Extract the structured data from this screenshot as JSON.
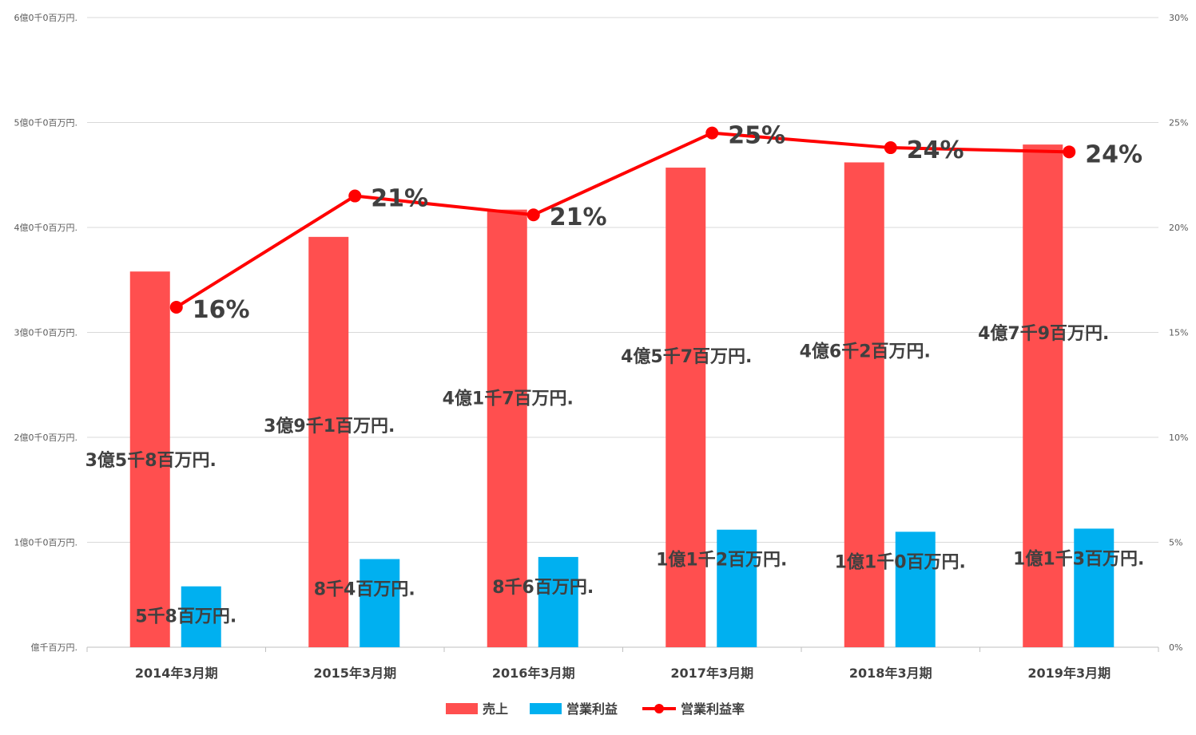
{
  "chart_data": {
    "type": "bar",
    "categories": [
      "2014年3月期",
      "2015年3月期",
      "2016年3月期",
      "2017年3月期",
      "2018年3月期",
      "2019年3月期"
    ],
    "series": [
      {
        "name": "売上",
        "kind": "bar",
        "axis": "left",
        "color": "#FF4F4F",
        "values": [
          358,
          391,
          417,
          457,
          462,
          479
        ],
        "labels": [
          "3億5千8百万円.",
          "3億9千1百万円.",
          "4億1千7百万円.",
          "4億5千7百万円.",
          "4億6千2百万円.",
          "4億7千9百万円."
        ]
      },
      {
        "name": "営業利益",
        "kind": "bar",
        "axis": "left",
        "color": "#00B0F0",
        "values": [
          58,
          84,
          86,
          112,
          110,
          113
        ],
        "labels": [
          "5千8百万円.",
          "8千4百万円.",
          "8千6百万円.",
          "1億1千2百万円.",
          "1億1千0百万円.",
          "1億1千3百万円."
        ]
      },
      {
        "name": "営業利益率",
        "kind": "line",
        "axis": "right",
        "color": "#FF0000",
        "values": [
          16.2,
          21.5,
          20.6,
          24.5,
          23.8,
          23.6
        ],
        "labels": [
          "16%",
          "21%",
          "21%",
          "25%",
          "24%",
          "24%"
        ]
      }
    ],
    "left_axis": {
      "ylim": [
        0,
        600
      ],
      "ticks": [
        0,
        100,
        200,
        300,
        400,
        500,
        600
      ],
      "tick_labels": [
        "億千百万円.",
        "1億0千0百万円.",
        "2億0千0百万円.",
        "3億0千0百万円.",
        "4億0千0百万円.",
        "5億0千0百万円.",
        "6億0千0百万円."
      ]
    },
    "right_axis": {
      "ylim": [
        0,
        30
      ],
      "ticks": [
        0,
        5,
        10,
        15,
        20,
        25,
        30
      ],
      "tick_labels": [
        "0%",
        "5%",
        "10%",
        "15%",
        "20%",
        "25%",
        "30%"
      ]
    },
    "grid": true,
    "legend": "bottom-center",
    "title": "",
    "xlabel": "",
    "ylabel": ""
  }
}
